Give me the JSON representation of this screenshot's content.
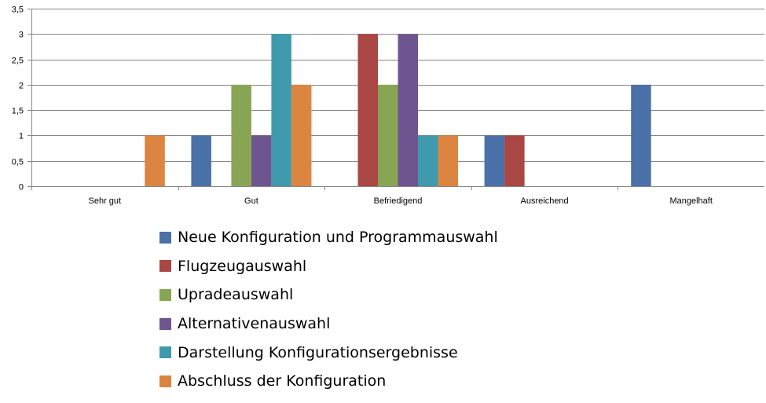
{
  "chart_data": {
    "type": "bar",
    "categories": [
      "Sehr gut",
      "Gut",
      "Befriedigend",
      "Ausreichend",
      "Mangelhaft"
    ],
    "series": [
      {
        "name": "Neue Konfiguration und Programmauswahl",
        "color": "#4a71a8",
        "values": [
          0,
          1,
          0,
          1,
          2
        ]
      },
      {
        "name": "Flugzeugauswahl",
        "color": "#a84743",
        "values": [
          0,
          0,
          3,
          1,
          0
        ]
      },
      {
        "name": "Upradeauswahl",
        "color": "#88a554",
        "values": [
          0,
          2,
          2,
          0,
          0
        ]
      },
      {
        "name": "Alternativenauswahl",
        "color": "#6e5590",
        "values": [
          0,
          1,
          3,
          0,
          0
        ]
      },
      {
        "name": "Darstellung Konfigurationsergebnisse",
        "color": "#3f9aae",
        "values": [
          0,
          3,
          1,
          0,
          0
        ]
      },
      {
        "name": "Abschluss der Konfiguration",
        "color": "#db8540",
        "values": [
          1,
          2,
          1,
          0,
          0
        ]
      }
    ],
    "y_ticks": [
      "0",
      "0,5",
      "1",
      "1,5",
      "2",
      "2,5",
      "3",
      "3,5"
    ],
    "ylim": [
      0,
      3.5
    ],
    "grid": true,
    "legend_position": "bottom"
  }
}
